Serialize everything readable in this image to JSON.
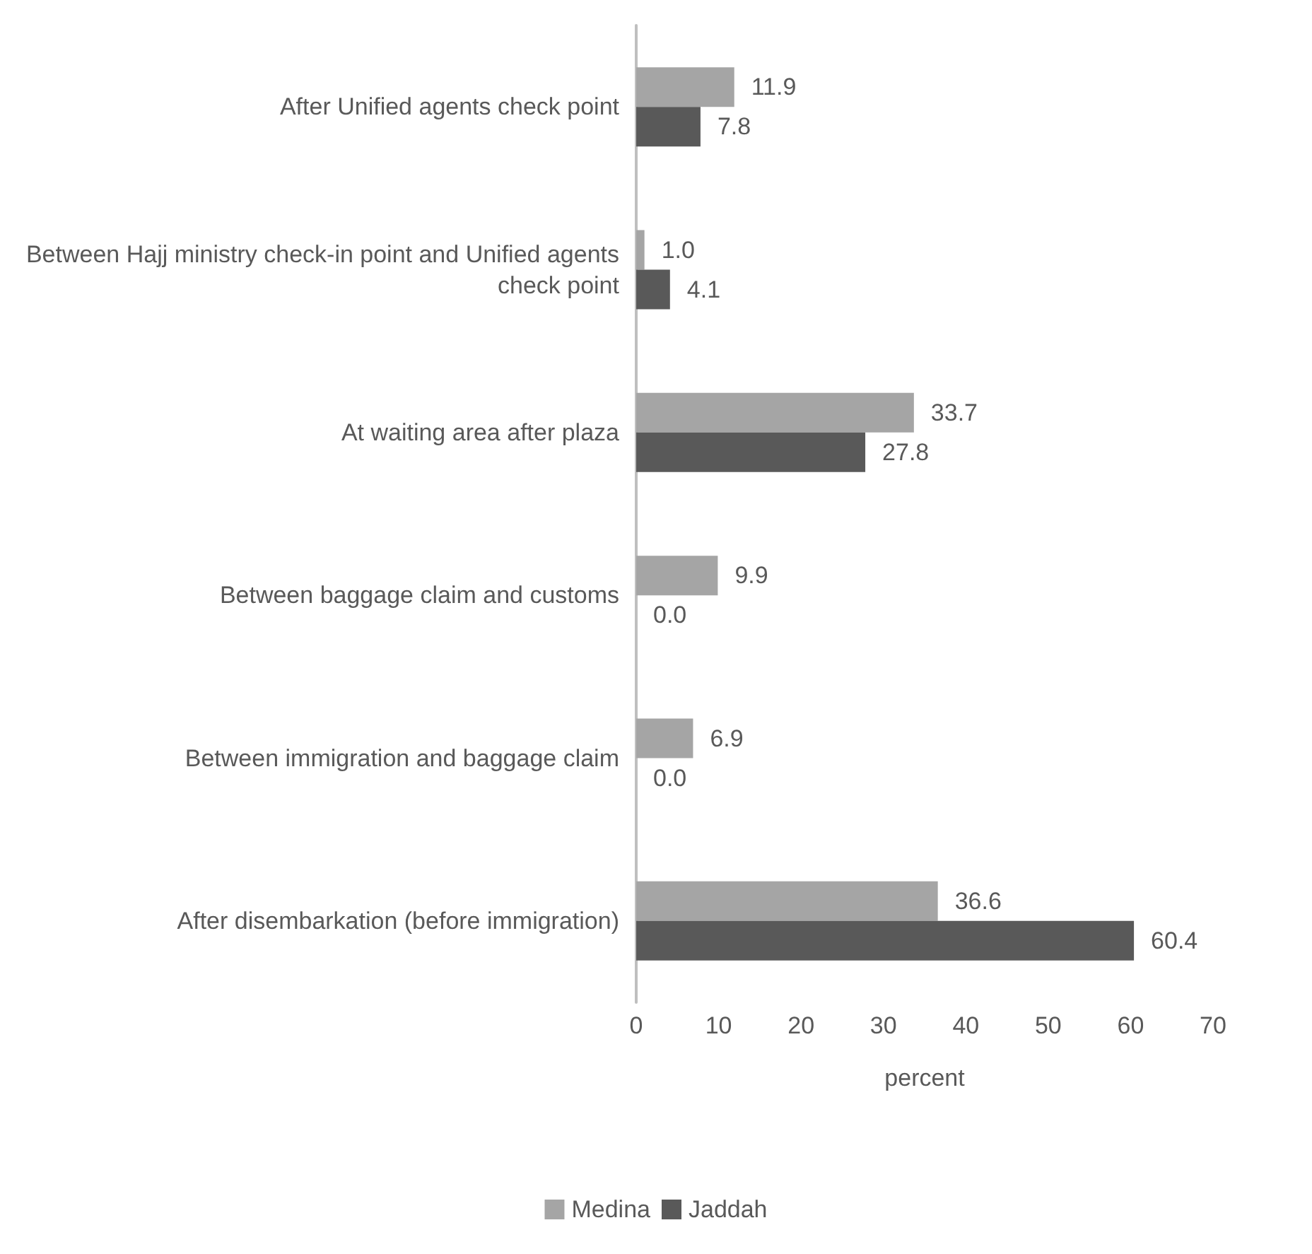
{
  "chart_data": {
    "type": "bar",
    "orientation": "horizontal",
    "xlabel": "percent",
    "categories": [
      "After Unified agents check point",
      "Between Hajj ministry check-in point and Unified agents check point",
      "At waiting area after plaza",
      "Between baggage claim and customs",
      "Between immigration and baggage claim",
      "After disembarkation (before immigration)"
    ],
    "series": [
      {
        "name": "Medina",
        "color": "#a5a5a5",
        "values": [
          11.9,
          1.0,
          33.7,
          9.9,
          6.9,
          36.6
        ],
        "value_labels": [
          "11.9",
          "1.0",
          "33.7",
          "9.9",
          "6.9",
          "36.6"
        ]
      },
      {
        "name": "Jaddah",
        "color": "#595959",
        "values": [
          7.8,
          4.1,
          27.8,
          0.0,
          0.0,
          60.4
        ],
        "value_labels": [
          "7.8",
          "4.1",
          "27.8",
          "0.0",
          "0.0",
          "60.4"
        ]
      }
    ],
    "xlim": [
      0,
      70
    ],
    "xticks": [
      0,
      10,
      20,
      30,
      40,
      50,
      60,
      70
    ],
    "grid": false,
    "legend": "bottom"
  }
}
